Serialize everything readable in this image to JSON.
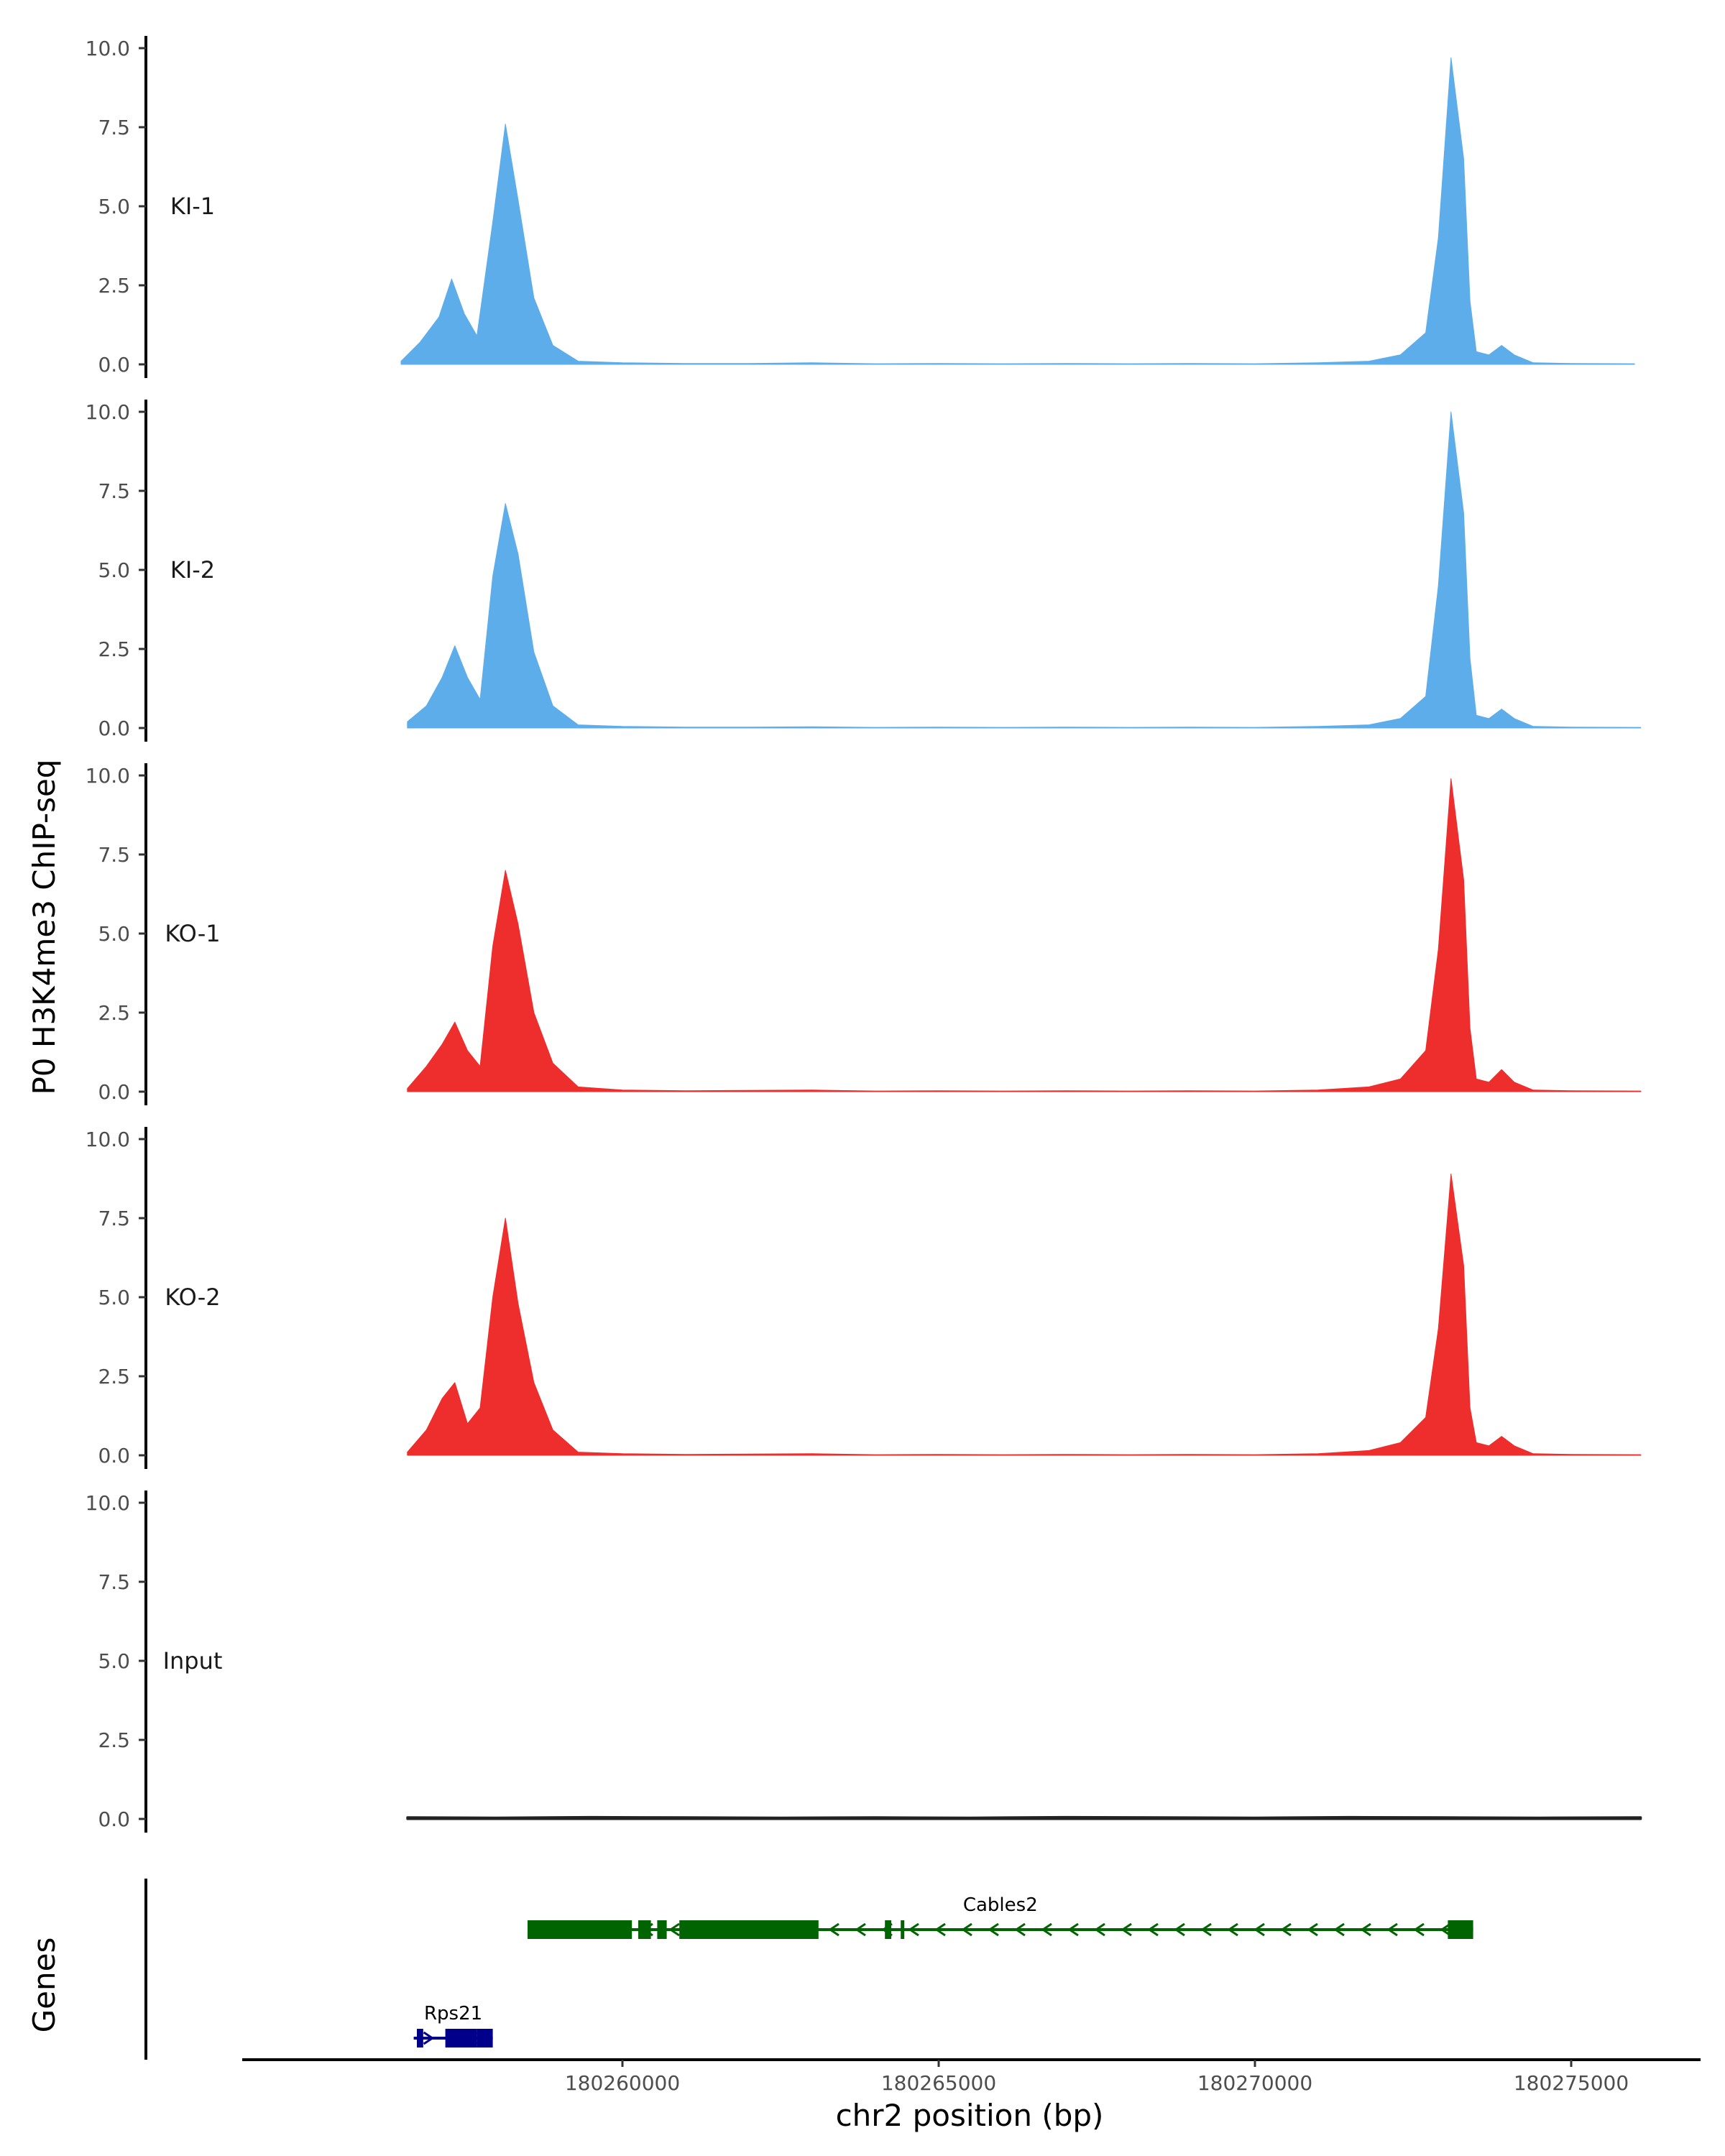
{
  "chart_data": {
    "type": "area",
    "ylabel": "P0 H3K4me3 ChIP-seq",
    "xlabel": "chr2 position (bp)",
    "genes_label": "Genes",
    "xlim": [
      180254000,
      180277000
    ],
    "ylim": [
      0,
      10.4
    ],
    "y_ticks": [
      0,
      2.5,
      5,
      7.5,
      10
    ],
    "y_tick_labels": [
      "0.0",
      "2.5",
      "5.0",
      "7.5",
      "10.0"
    ],
    "x_ticks": [
      180260000,
      180265000,
      180270000,
      180275000
    ],
    "x_tick_labels": [
      "180260000",
      "180265000",
      "180270000",
      "180275000"
    ],
    "series": [
      {
        "name": "KI-1",
        "color": "#5DADEA",
        "x": [
          180256500,
          180256800,
          180257100,
          180257300,
          180257500,
          180257700,
          180257950,
          180258150,
          180258350,
          180258600,
          180258900,
          180259300,
          180260000,
          180261000,
          180262000,
          180263000,
          180264000,
          180265000,
          180266000,
          180267000,
          180268000,
          180269000,
          180270000,
          180271000,
          180271800,
          180272300,
          180272700,
          180272900,
          180273100,
          180273300,
          180273400,
          180273500,
          180273700,
          180273900,
          180274100,
          180274400,
          180275000,
          180276000
        ],
        "values": [
          0.1,
          0.7,
          1.5,
          2.7,
          1.6,
          0.9,
          4.5,
          7.6,
          5.2,
          2.1,
          0.6,
          0.1,
          0.05,
          0.03,
          0.03,
          0.05,
          0.02,
          0.03,
          0.02,
          0.03,
          0.02,
          0.03,
          0.02,
          0.05,
          0.1,
          0.3,
          1.0,
          4.0,
          9.7,
          6.5,
          2.0,
          0.4,
          0.3,
          0.6,
          0.3,
          0.05,
          0.03,
          0.02
        ]
      },
      {
        "name": "KI-2",
        "color": "#5DADEA",
        "x": [
          180256600,
          180256900,
          180257150,
          180257350,
          180257550,
          180257750,
          180257950,
          180258150,
          180258350,
          180258600,
          180258900,
          180259300,
          180260000,
          180261000,
          180262000,
          180263000,
          180264000,
          180265000,
          180266000,
          180267000,
          180268000,
          180269000,
          180270000,
          180271000,
          180271800,
          180272300,
          180272700,
          180272900,
          180273100,
          180273300,
          180273400,
          180273500,
          180273700,
          180273900,
          180274100,
          180274400,
          180275000,
          180276100
        ],
        "values": [
          0.2,
          0.7,
          1.6,
          2.6,
          1.6,
          0.9,
          4.8,
          7.1,
          5.5,
          2.4,
          0.7,
          0.1,
          0.05,
          0.03,
          0.03,
          0.04,
          0.02,
          0.03,
          0.02,
          0.03,
          0.02,
          0.03,
          0.02,
          0.05,
          0.1,
          0.3,
          1.0,
          4.5,
          10.0,
          6.8,
          2.2,
          0.4,
          0.3,
          0.6,
          0.3,
          0.05,
          0.03,
          0.02
        ]
      },
      {
        "name": "KO-1",
        "color": "#EE2D2D",
        "x": [
          180256600,
          180256900,
          180257150,
          180257350,
          180257550,
          180257750,
          180257950,
          180258150,
          180258350,
          180258600,
          180258900,
          180259300,
          180260000,
          180261000,
          180262000,
          180263000,
          180264000,
          180265000,
          180266000,
          180267000,
          180268000,
          180269000,
          180270000,
          180271000,
          180271800,
          180272300,
          180272700,
          180272900,
          180273100,
          180273300,
          180273400,
          180273500,
          180273700,
          180273900,
          180274100,
          180274400,
          180275000,
          180276100
        ],
        "values": [
          0.1,
          0.8,
          1.5,
          2.2,
          1.3,
          0.8,
          4.6,
          7.0,
          5.3,
          2.5,
          0.9,
          0.15,
          0.05,
          0.03,
          0.04,
          0.05,
          0.02,
          0.03,
          0.02,
          0.03,
          0.02,
          0.03,
          0.02,
          0.05,
          0.15,
          0.4,
          1.3,
          4.5,
          9.9,
          6.7,
          2.0,
          0.4,
          0.3,
          0.7,
          0.3,
          0.05,
          0.03,
          0.02
        ]
      },
      {
        "name": "KO-2",
        "color": "#EE2D2D",
        "x": [
          180256600,
          180256900,
          180257150,
          180257350,
          180257550,
          180257750,
          180257950,
          180258150,
          180258350,
          180258600,
          180258900,
          180259300,
          180260000,
          180261000,
          180262000,
          180263000,
          180264000,
          180265000,
          180266000,
          180267000,
          180268000,
          180269000,
          180270000,
          180271000,
          180271800,
          180272300,
          180272700,
          180272900,
          180273100,
          180273300,
          180273400,
          180273500,
          180273700,
          180273900,
          180274100,
          180274400,
          180275000,
          180276100
        ],
        "values": [
          0.1,
          0.8,
          1.8,
          2.3,
          1.0,
          1.5,
          5.0,
          7.5,
          4.8,
          2.3,
          0.8,
          0.1,
          0.05,
          0.03,
          0.04,
          0.05,
          0.02,
          0.03,
          0.02,
          0.03,
          0.02,
          0.03,
          0.02,
          0.05,
          0.15,
          0.4,
          1.2,
          4.0,
          8.9,
          6.0,
          1.5,
          0.4,
          0.3,
          0.6,
          0.3,
          0.05,
          0.03,
          0.02
        ]
      },
      {
        "name": "Input",
        "color": "#222222",
        "x": [
          180256600,
          180258000,
          180259500,
          180261000,
          180262500,
          180264000,
          180265500,
          180267000,
          180268500,
          180270000,
          180271500,
          180273000,
          180274500,
          180276100
        ],
        "values": [
          0.05,
          0.04,
          0.06,
          0.05,
          0.04,
          0.05,
          0.04,
          0.06,
          0.05,
          0.04,
          0.06,
          0.05,
          0.04,
          0.05
        ]
      }
    ],
    "genes": [
      {
        "name": "Cables2",
        "color": "#006400",
        "start": 180258500,
        "end": 180273450,
        "row": 1,
        "strand": "-",
        "exons": [
          [
            180258500,
            180260150
          ],
          [
            180260250,
            180260450
          ],
          [
            180260550,
            180260700
          ],
          [
            180260900,
            180263100
          ],
          [
            180264150,
            180264250
          ],
          [
            180264400,
            180264450
          ],
          [
            180273050,
            180273450
          ]
        ]
      },
      {
        "name": "Rps21",
        "color": "#00008B",
        "start": 180256700,
        "end": 180257950,
        "row": 2,
        "strand": "+",
        "exons": [
          [
            180256750,
            180256850
          ],
          [
            180257200,
            180257700
          ],
          [
            180257700,
            180257850
          ],
          [
            180257750,
            180257950
          ]
        ]
      }
    ]
  }
}
